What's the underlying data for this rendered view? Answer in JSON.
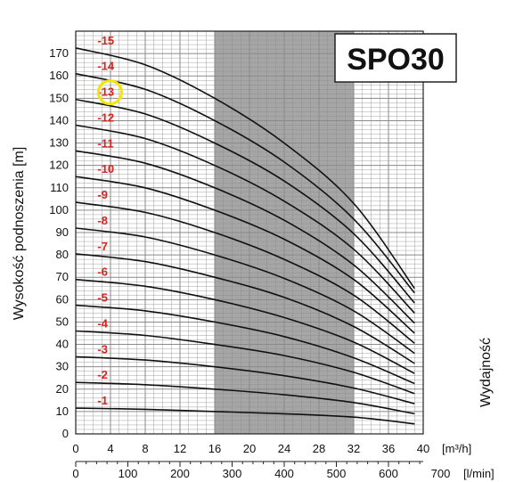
{
  "chart_data": {
    "type": "line",
    "title": "SPO30",
    "ylabel": "Wysokość podnoszenia [m]",
    "xlabel": "Wydajność",
    "x_unit_primary": "[m³/h]",
    "x_unit_secondary": "[l/min]",
    "xlim": [
      0,
      40
    ],
    "ylim": [
      0,
      180
    ],
    "x_ticks": [
      "0",
      "4",
      "8",
      "12",
      "16",
      "20",
      "24",
      "28",
      "32",
      "36",
      "40"
    ],
    "x2_ticks": [
      "0",
      "100",
      "200",
      "300",
      "400",
      "500",
      "600",
      "700"
    ],
    "y_ticks": [
      "0",
      "10",
      "20",
      "30",
      "40",
      "50",
      "60",
      "70",
      "80",
      "90",
      "100",
      "110",
      "120",
      "130",
      "140",
      "150",
      "160",
      "170"
    ],
    "grid": true,
    "shaded_range_x": [
      16,
      32
    ],
    "highlighted_series": "-13",
    "series": [
      {
        "name": "-1",
        "x": [
          0,
          8,
          16,
          24,
          32,
          39
        ],
        "y": [
          11.5,
          11,
          10,
          9,
          7.5,
          4.5
        ]
      },
      {
        "name": "-2",
        "x": [
          0,
          8,
          16,
          24,
          32,
          39
        ],
        "y": [
          23,
          22,
          20,
          17.5,
          14,
          9
        ]
      },
      {
        "name": "-3",
        "x": [
          0,
          8,
          16,
          24,
          32,
          39
        ],
        "y": [
          34.5,
          33,
          30,
          26,
          20.5,
          13.5
        ]
      },
      {
        "name": "-4",
        "x": [
          0,
          8,
          16,
          24,
          32,
          39
        ],
        "y": [
          46,
          44,
          40,
          35,
          27.5,
          18
        ]
      },
      {
        "name": "-5",
        "x": [
          0,
          8,
          16,
          24,
          32,
          39
        ],
        "y": [
          57.5,
          55,
          50,
          43.5,
          34,
          22.5
        ]
      },
      {
        "name": "-6",
        "x": [
          0,
          8,
          16,
          24,
          32,
          39
        ],
        "y": [
          69,
          66,
          60,
          52,
          41,
          27
        ]
      },
      {
        "name": "-7",
        "x": [
          0,
          8,
          16,
          24,
          32,
          39
        ],
        "y": [
          80.5,
          77,
          70,
          61,
          48,
          31.5
        ]
      },
      {
        "name": "-8",
        "x": [
          0,
          8,
          16,
          24,
          32,
          39
        ],
        "y": [
          92,
          88,
          80,
          69.5,
          55,
          36
        ]
      },
      {
        "name": "-9",
        "x": [
          0,
          8,
          16,
          24,
          32,
          39
        ],
        "y": [
          103.5,
          99,
          90,
          78,
          62,
          40.5
        ]
      },
      {
        "name": "-10",
        "x": [
          0,
          8,
          16,
          24,
          32,
          39
        ],
        "y": [
          115,
          110,
          100,
          87,
          69,
          45
        ]
      },
      {
        "name": "-11",
        "x": [
          0,
          8,
          16,
          24,
          32,
          39
        ],
        "y": [
          126.5,
          121,
          110,
          95.5,
          75.5,
          49.5
        ]
      },
      {
        "name": "-12",
        "x": [
          0,
          8,
          16,
          24,
          32,
          39
        ],
        "y": [
          138,
          132,
          120,
          104,
          82.5,
          54
        ]
      },
      {
        "name": "-13",
        "x": [
          0,
          8,
          16,
          24,
          32,
          39
        ],
        "y": [
          149.5,
          143,
          130,
          113,
          89.5,
          58.5
        ]
      },
      {
        "name": "-14",
        "x": [
          0,
          8,
          16,
          24,
          32,
          39
        ],
        "y": [
          161,
          154,
          140,
          121.5,
          96,
          63
        ]
      },
      {
        "name": "-15",
        "x": [
          0,
          8,
          16,
          24,
          32,
          39
        ],
        "y": [
          172.5,
          165,
          150,
          130,
          103,
          65
        ]
      }
    ],
    "colors": {
      "curve": "#111111",
      "stage_label": "#d8231f",
      "shaded": "#a6a6a6",
      "grid": "#8a8a8a",
      "highlight": "#f2e600"
    }
  }
}
